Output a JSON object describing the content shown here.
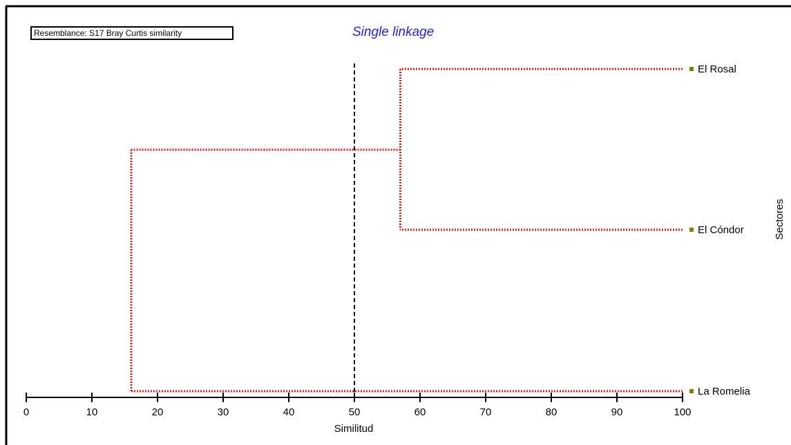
{
  "chart_data": {
    "type": "dendrogram",
    "title": "Single linkage",
    "annotation": "Resemblance: S17 Bray Curtis similarity",
    "xlabel": "Similitud",
    "ylabel": "Sectores",
    "xlim": [
      0,
      100
    ],
    "xticks": [
      0,
      10,
      20,
      30,
      40,
      50,
      60,
      70,
      80,
      90,
      100
    ],
    "leaves": [
      "El Rosal",
      "El Cóndor",
      "La Romelia"
    ],
    "merges": [
      {
        "members": [
          "El Rosal",
          "El Cóndor"
        ],
        "similarity": 57
      },
      {
        "members": [
          "El Rosal",
          "El Cóndor",
          "La Romelia"
        ],
        "similarity": 16
      }
    ],
    "cut_line": 50,
    "colors": {
      "branches": "#d42020",
      "cut_line": "#000000",
      "leaf_marker": "#808000",
      "title": "#1f1fd6"
    }
  }
}
